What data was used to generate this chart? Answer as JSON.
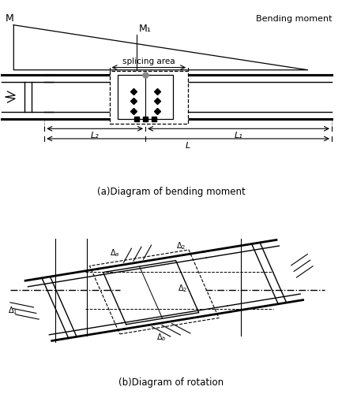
{
  "fig_width": 4.33,
  "fig_height": 5.0,
  "dpi": 100,
  "bg_color": "#ffffff",
  "line_color": "#000000",
  "gray_color": "#888888",
  "caption_a": "(a)Diagram of bending moment",
  "caption_b": "(b)Diagram of rotation",
  "label_M": "M",
  "label_M1": "M₁",
  "label_bending": "Bending moment",
  "label_splicing": "splicing area",
  "label_L": "L",
  "label_L1": "L₁",
  "label_L2": "L₂"
}
